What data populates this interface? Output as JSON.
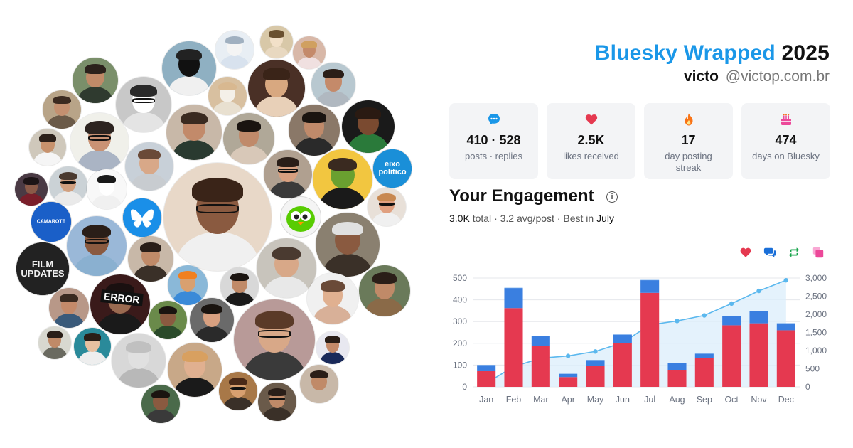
{
  "header": {
    "brand": "Bluesky Wrapped",
    "year": "2025",
    "name": "victo",
    "handle": "@victop.com.br",
    "brand_color": "#1a97e8"
  },
  "stats": [
    {
      "icon": "chat-bubble-icon",
      "value": "410 · 528",
      "label": "posts · replies",
      "color": "#1a97e8"
    },
    {
      "icon": "heart-icon",
      "value": "2.5K",
      "label": "likes received",
      "color": "#e53950"
    },
    {
      "icon": "flame-icon",
      "value": "17",
      "label": "day posting streak",
      "color": "#f97316"
    },
    {
      "icon": "cake-icon",
      "value": "474",
      "label": "days on Bluesky",
      "color": "#ec4899"
    }
  ],
  "engagement": {
    "title": "Your Engagement",
    "info_glyph": "i",
    "total": "3.0K",
    "total_label": "total",
    "avg": "3.2 avg/post",
    "best_label": "Best in",
    "best_month": "July"
  },
  "legend": [
    {
      "icon": "heart-icon",
      "color": "#e53950"
    },
    {
      "icon": "reply-icon",
      "color": "#1a6fd8"
    },
    {
      "icon": "repost-icon",
      "color": "#16a34a"
    },
    {
      "icon": "quote-icon",
      "color": "#ec4899"
    }
  ],
  "collage": {
    "labels": {
      "error": "ERROR",
      "eixo": "eixo\npolitico",
      "film": "FILM\nUPDATES",
      "camarote": "CAMAROTE"
    }
  },
  "chart_data": {
    "type": "bar",
    "categories": [
      "Jan",
      "Feb",
      "Mar",
      "Apr",
      "May",
      "Jun",
      "Jul",
      "Aug",
      "Sep",
      "Oct",
      "Nov",
      "Dec"
    ],
    "series": [
      {
        "values": [
          72,
          362,
          188,
          45,
          98,
          200,
          432,
          78,
          132,
          283,
          292,
          260
        ],
        "color": "#e53950"
      },
      {
        "values": [
          28,
          92,
          45,
          15,
          25,
          40,
          58,
          30,
          20,
          42,
          56,
          32
        ],
        "color": "#3a7fe0"
      },
      {
        "values": [
          1,
          2,
          1,
          0,
          1,
          1,
          2,
          1,
          1,
          1,
          1,
          1
        ],
        "color": "#9ec7f2"
      }
    ],
    "cumulative": [
      101,
      557,
      791,
      851,
      975,
      1216,
      1708,
      1817,
      1970,
      2296,
      2645,
      2938
    ],
    "ylim": [
      0,
      500
    ],
    "y2lim": [
      0,
      3000
    ],
    "yticks": [
      0,
      100,
      200,
      300,
      400,
      500
    ],
    "y2ticks": [
      "0",
      "500",
      "1,000",
      "1,500",
      "2,000",
      "2,500",
      "3,000"
    ],
    "line_color": "#5bb8ee",
    "grid": true
  }
}
